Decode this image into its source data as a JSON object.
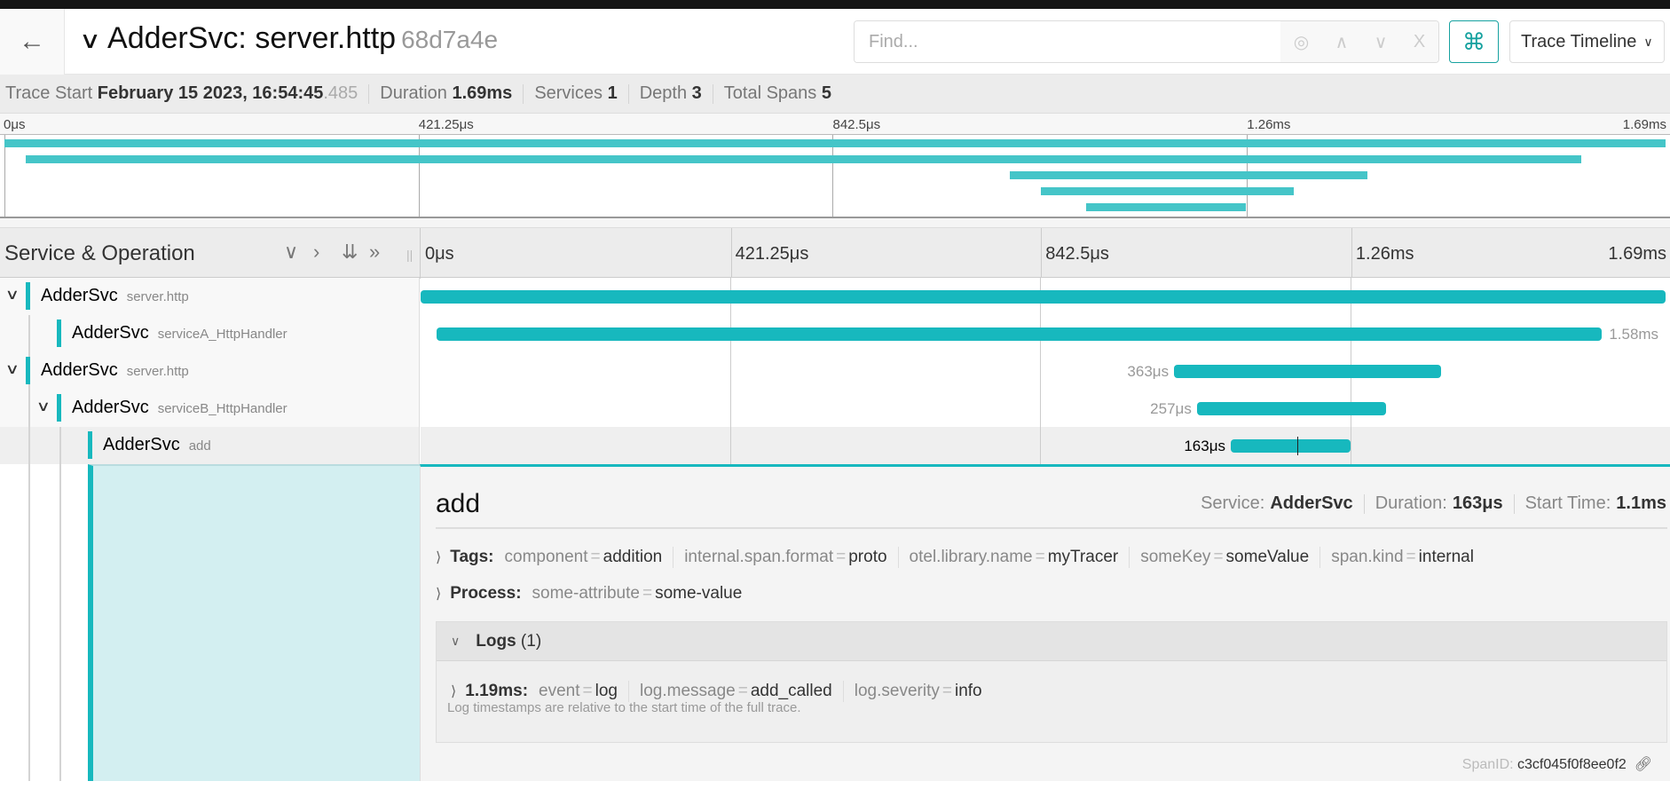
{
  "header": {
    "title": "AdderSvc: server.http",
    "trace_id": "68d7a4e",
    "find_placeholder": "Find...",
    "view_select": "Trace Timeline",
    "icons": [
      "back-arrow-icon",
      "chevron-down-icon",
      "locate-icon",
      "chevron-up-icon",
      "chevron-down-icon",
      "close-icon",
      "command-icon"
    ]
  },
  "stats": {
    "trace_start_label": "Trace Start",
    "trace_start": "February 15 2023, 16:54:45",
    "trace_start_ms": ".485",
    "duration_label": "Duration",
    "duration": "1.69ms",
    "services_label": "Services",
    "services": "1",
    "depth_label": "Depth",
    "depth": "3",
    "total_spans_label": "Total Spans",
    "total_spans": "5"
  },
  "ticks": [
    "0μs",
    "421.25μs",
    "842.5μs",
    "1.26ms",
    "1.69ms"
  ],
  "tick_values_us": [
    0,
    421.25,
    842.5,
    1263.75,
    1685
  ],
  "table": {
    "header": "Service & Operation"
  },
  "colors": {
    "accent": "#17b8be",
    "minimap_bar": "#45c5c8"
  },
  "spans": [
    {
      "service": "AdderSvc",
      "operation": "server.http",
      "depth": 0,
      "collapsible": true,
      "start_us": 0,
      "duration_us": 1690,
      "label": ""
    },
    {
      "service": "AdderSvc",
      "operation": "serviceA_HttpHandler",
      "depth": 1,
      "collapsible": false,
      "start_us": 22,
      "duration_us": 1582,
      "label": "1.58ms",
      "label_side": "right"
    },
    {
      "service": "AdderSvc",
      "operation": "server.http",
      "depth": 0,
      "collapsible": true,
      "start_us": 1023,
      "duration_us": 363,
      "label": "363μs",
      "label_side": "left"
    },
    {
      "service": "AdderSvc",
      "operation": "serviceB_HttpHandler",
      "depth": 1,
      "collapsible": true,
      "start_us": 1054,
      "duration_us": 257,
      "label": "257μs",
      "label_side": "left"
    },
    {
      "service": "AdderSvc",
      "operation": "add",
      "depth": 2,
      "collapsible": false,
      "start_us": 1100,
      "duration_us": 163,
      "label": "163μs",
      "label_side": "left",
      "selected": true,
      "log_at_us": 1190
    }
  ],
  "detail": {
    "operation": "add",
    "service_label": "Service:",
    "service": "AdderSvc",
    "duration_label": "Duration:",
    "duration": "163μs",
    "start_label": "Start Time:",
    "start": "1.1ms",
    "tags_label": "Tags:",
    "tags": [
      {
        "k": "component",
        "v": "addition"
      },
      {
        "k": "internal.span.format",
        "v": "proto"
      },
      {
        "k": "otel.library.name",
        "v": "myTracer"
      },
      {
        "k": "someKey",
        "v": "someValue"
      },
      {
        "k": "span.kind",
        "v": "internal"
      }
    ],
    "process_label": "Process:",
    "process": [
      {
        "k": "some-attribute",
        "v": "some-value"
      }
    ],
    "logs_label": "Logs",
    "logs_count": "(1)",
    "log_time": "1.19ms:",
    "log_fields": [
      {
        "k": "event",
        "v": "log"
      },
      {
        "k": "log.message",
        "v": "add_called"
      },
      {
        "k": "log.severity",
        "v": "info"
      }
    ],
    "log_note": "Log timestamps are relative to the start time of the full trace.",
    "span_id_label": "SpanID:",
    "span_id": "c3cf045f0f8ee0f2"
  }
}
